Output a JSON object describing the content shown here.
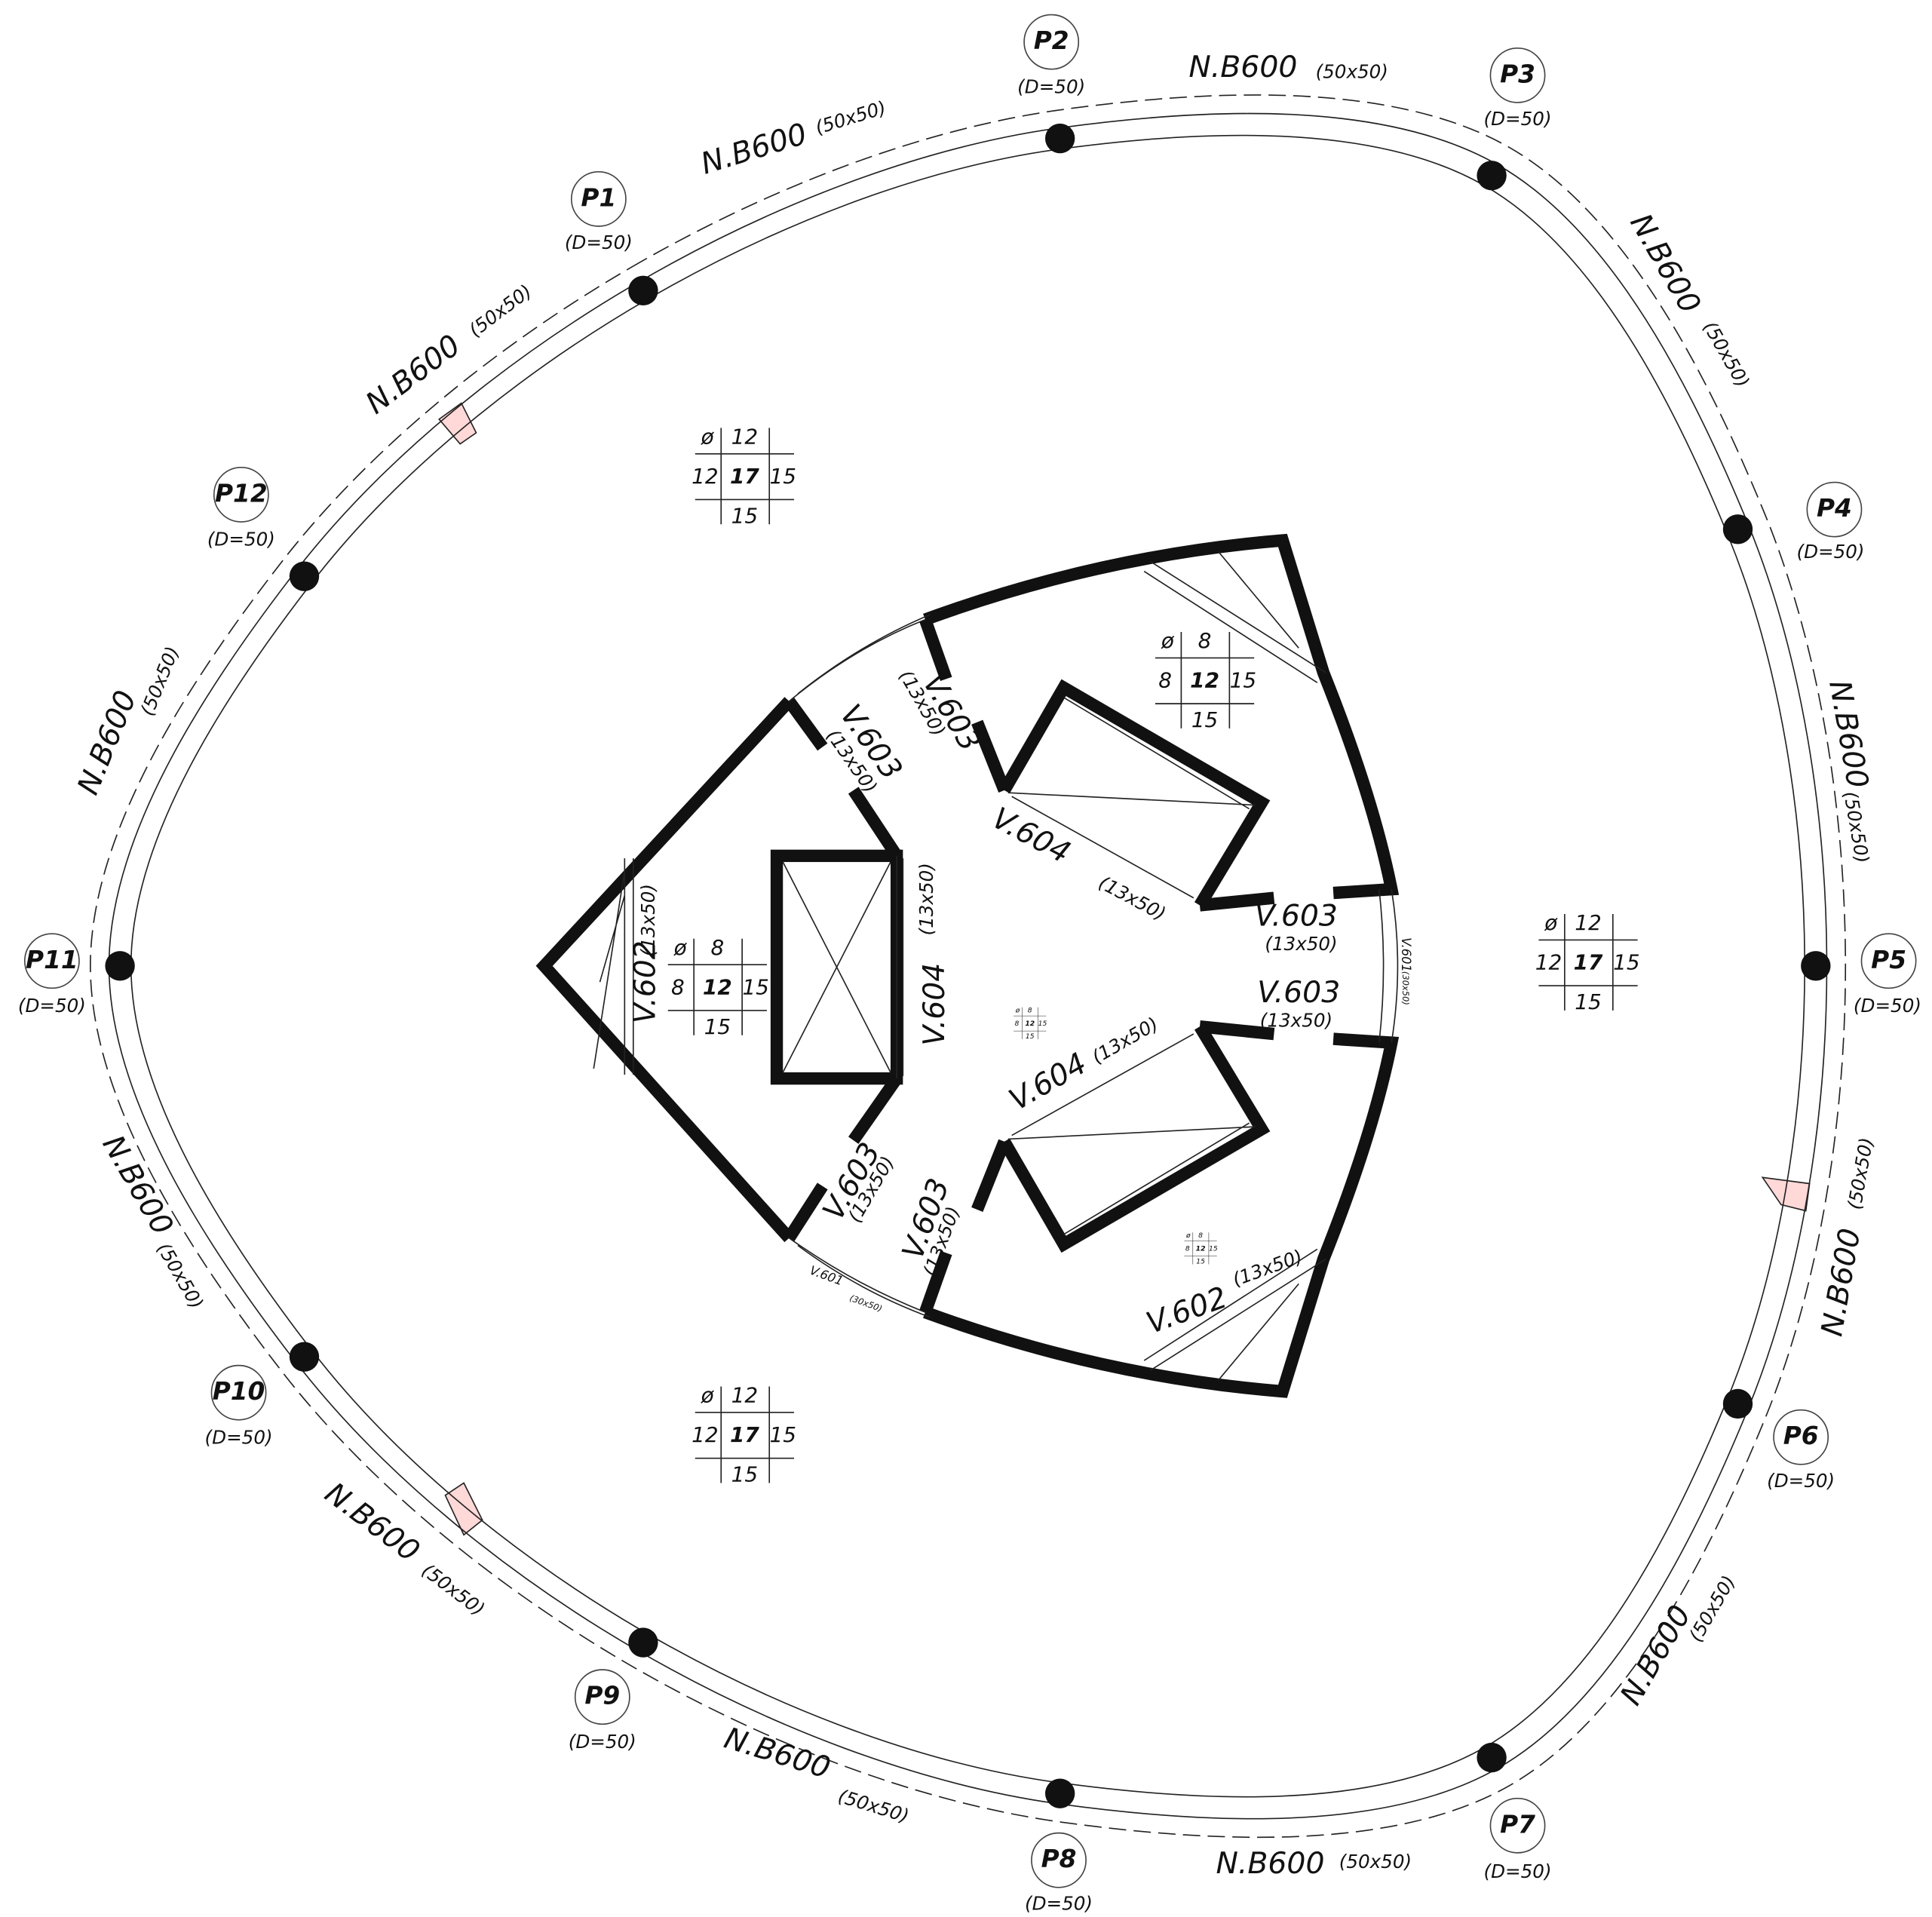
{
  "pillars": [
    {
      "label": "P1",
      "note": "(D=50)"
    },
    {
      "label": "P2",
      "note": "(D=50)"
    },
    {
      "label": "P3",
      "note": "(D=50)"
    },
    {
      "label": "P4",
      "note": "(D=50)"
    },
    {
      "label": "P5",
      "note": "(D=50)"
    },
    {
      "label": "P6",
      "note": "(D=50)"
    },
    {
      "label": "P7",
      "note": "(D=50)"
    },
    {
      "label": "P8",
      "note": "(D=50)"
    },
    {
      "label": "P9",
      "note": "(D=50)"
    },
    {
      "label": "P10",
      "note": "(D=50)"
    },
    {
      "label": "P11",
      "note": "(D=50)"
    },
    {
      "label": "P12",
      "note": "(D=50)"
    }
  ],
  "ring_beams": [
    {
      "label": "N.B600",
      "size": "(50x50)"
    },
    {
      "label": "N.B600",
      "size": "(50x50)"
    },
    {
      "label": "N.B600",
      "size": "(50x50)"
    },
    {
      "label": "N.B600",
      "size": "(50x50)"
    },
    {
      "label": "N.B600",
      "size": "(50x50)"
    },
    {
      "label": "N.B600",
      "size": "(50x50)"
    },
    {
      "label": "N.B600",
      "size": "(50x50)"
    },
    {
      "label": "N.B600",
      "size": "(50x50)"
    },
    {
      "label": "N.B600",
      "size": "(50x50)"
    },
    {
      "label": "N.B600",
      "size": "(50x50)"
    },
    {
      "label": "N.B600",
      "size": "(50x50)"
    },
    {
      "label": "N.B600",
      "size": "(50x50)"
    }
  ],
  "core_beams": [
    {
      "label": "V.603",
      "size": "(13x50)"
    },
    {
      "label": "V.603",
      "size": "(13x50)"
    },
    {
      "label": "V.604",
      "size": "(13x50)"
    },
    {
      "label": "V.603",
      "size": "(13x50)"
    },
    {
      "label": "V.603",
      "size": "(13x50)"
    },
    {
      "label": "V.604",
      "size": "(13x50)"
    },
    {
      "label": "V.602",
      "size": "(13x50)"
    },
    {
      "label": "V.604",
      "size": "(13x50)"
    },
    {
      "label": "V.603",
      "size": "(13x50)"
    },
    {
      "label": "V.603",
      "size": "(13x50)"
    },
    {
      "label": "V.602",
      "size": "(13x50)"
    },
    {
      "label": "V.601",
      "size": "(30x50)"
    },
    {
      "label": "V.601",
      "size": "(30x50)"
    }
  ],
  "slabs": [
    {
      "symbol": "ø",
      "top": "12",
      "left": "12",
      "center": "17",
      "right": "15",
      "bottom": "15"
    },
    {
      "symbol": "ø",
      "top": "8",
      "left": "8",
      "center": "12",
      "right": "15",
      "bottom": "15"
    },
    {
      "symbol": "ø",
      "top": "12",
      "left": "12",
      "center": "17",
      "right": "15",
      "bottom": "15"
    },
    {
      "symbol": "ø",
      "top": "8",
      "left": "8",
      "center": "12",
      "right": "15",
      "bottom": "15"
    },
    {
      "symbol": "ø",
      "top": "12",
      "left": "12",
      "center": "17",
      "right": "15",
      "bottom": "15"
    },
    {
      "symbol": "ø",
      "top": "8",
      "left": "8",
      "center": "12",
      "right": "15",
      "bottom": "15"
    },
    {
      "symbol": "ø",
      "top": "8",
      "left": "8",
      "center": "12",
      "right": "15",
      "bottom": "15"
    }
  ]
}
